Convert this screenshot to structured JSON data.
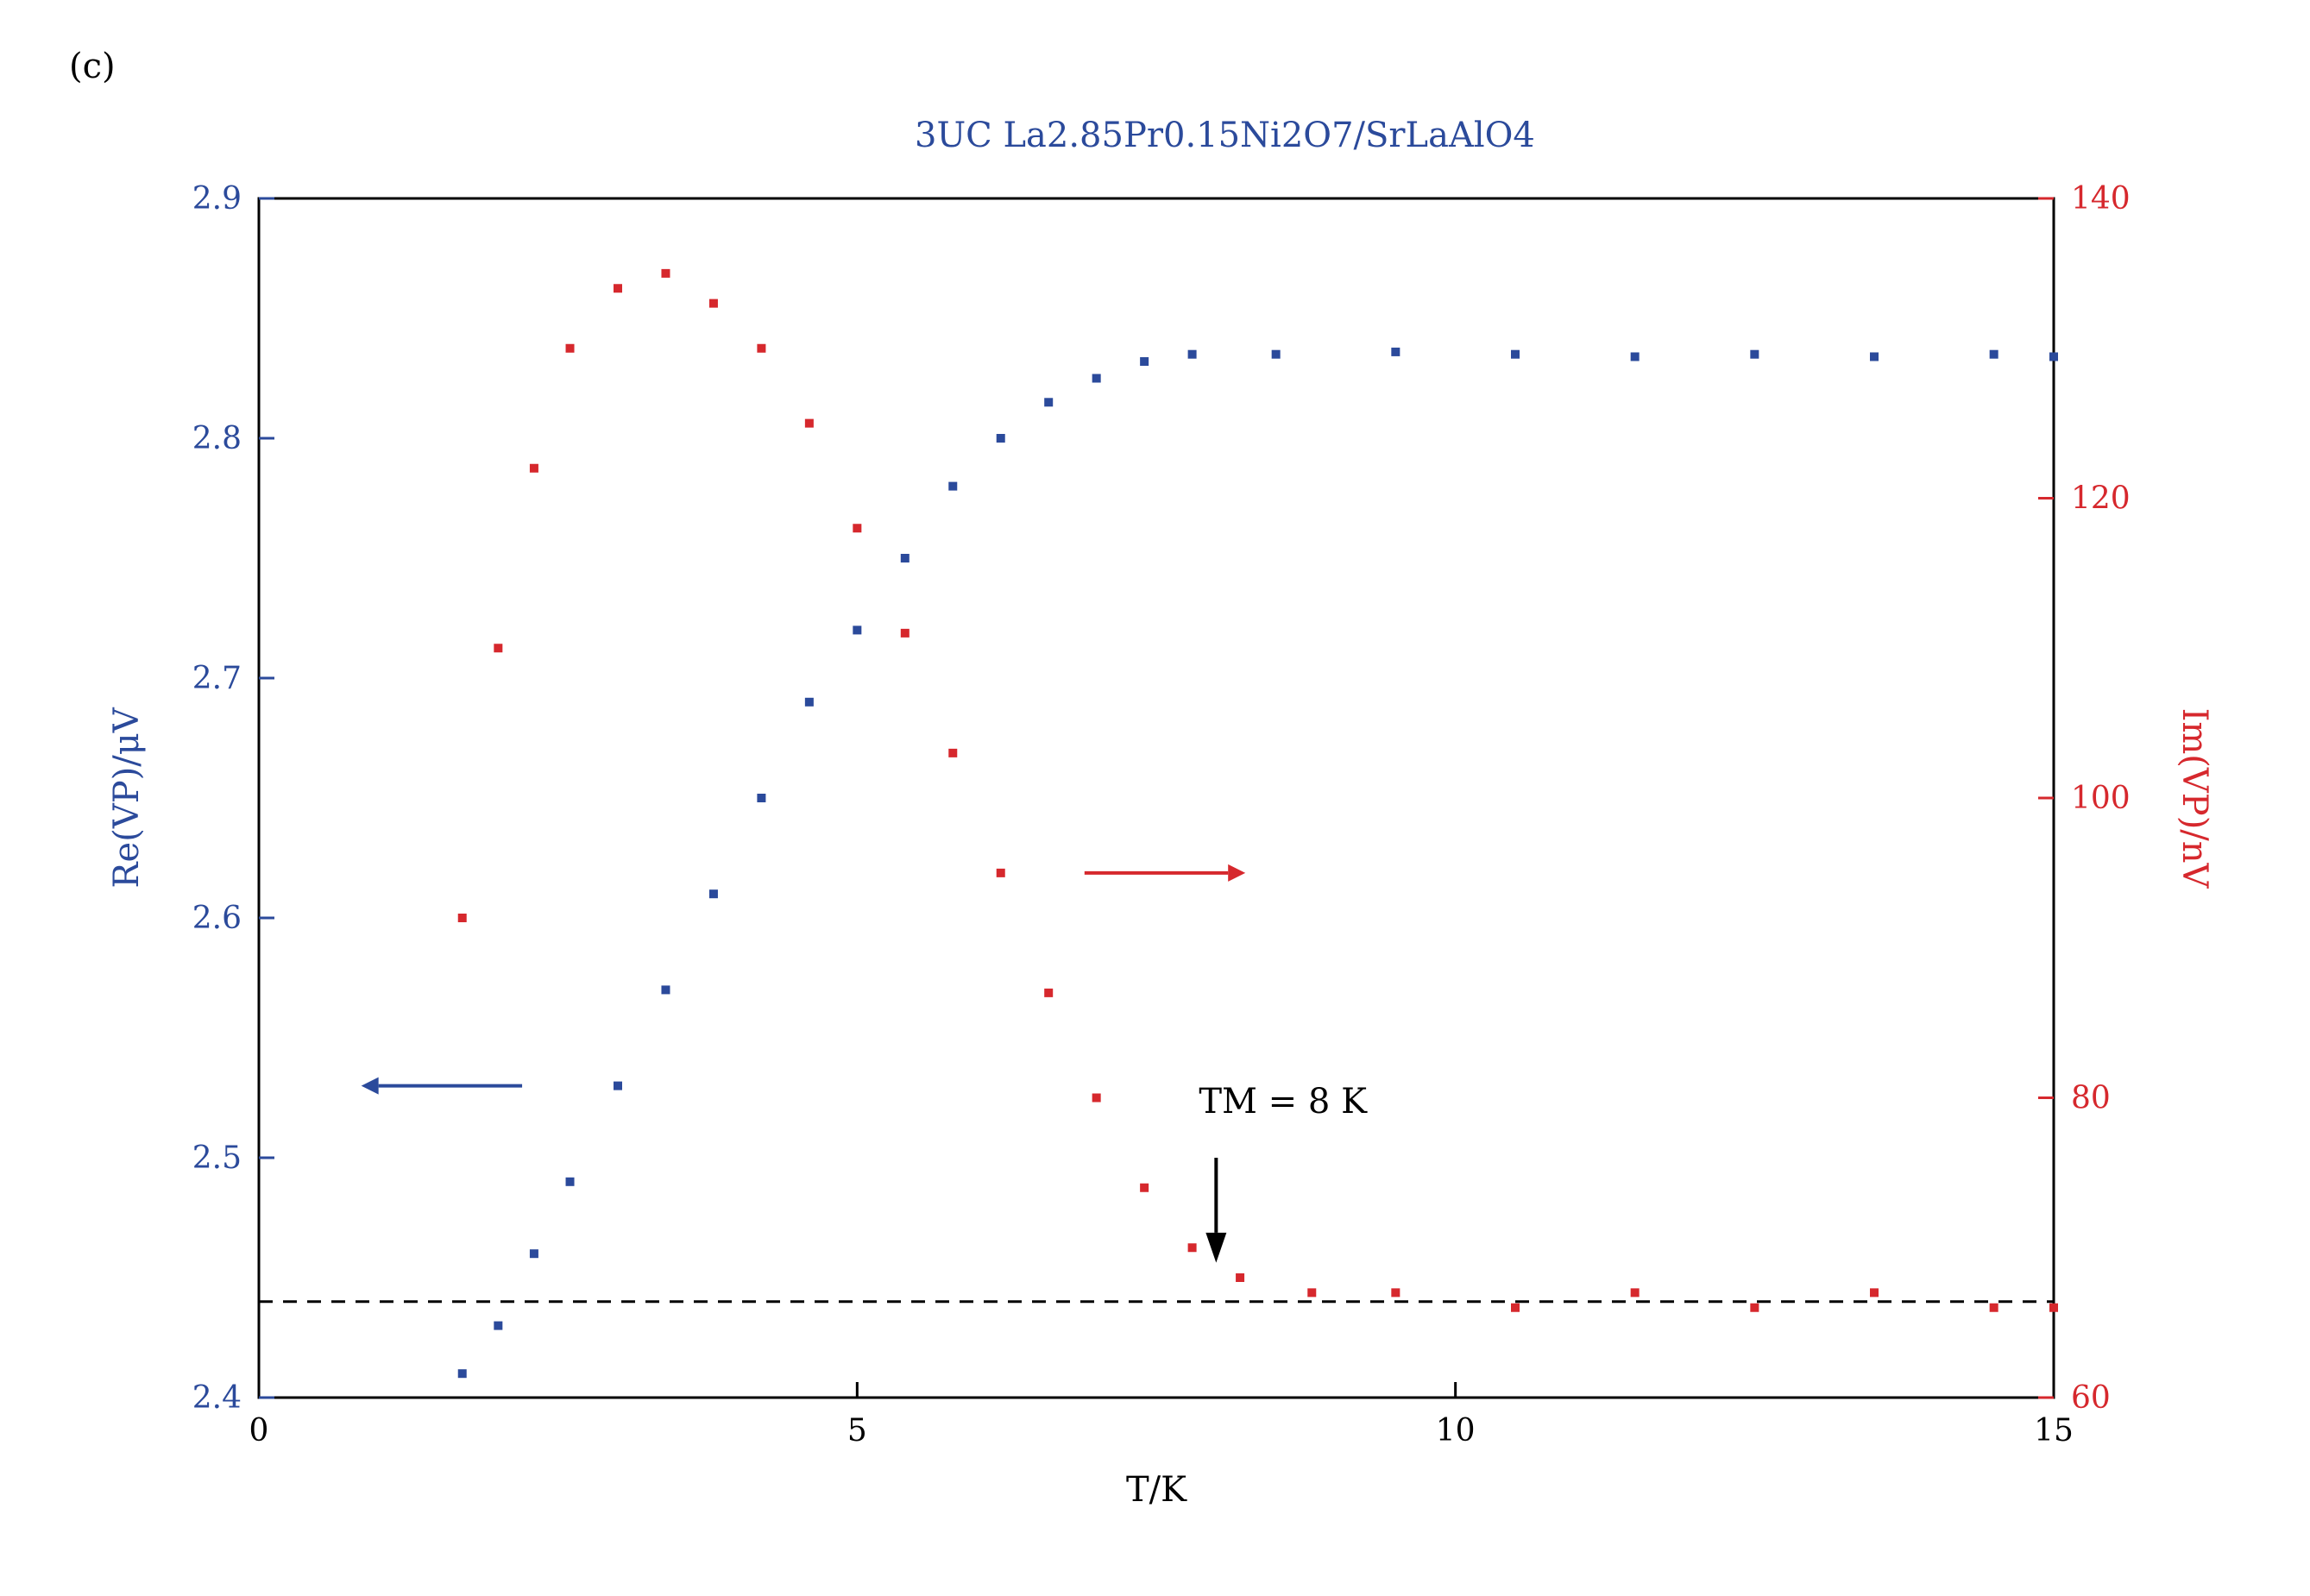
{
  "panel_label": "(c)",
  "chart_data": {
    "type": "scatter",
    "title": "3UC La2.85Pr0.15Ni2O7/SrLaAlO4",
    "xlabel": "T/K",
    "ylabel_left": "Re(VP)/μV",
    "ylabel_right": "Im(VP)/nV",
    "xlim": [
      0,
      15
    ],
    "ylim_left": [
      2.4,
      2.9
    ],
    "ylim_right": [
      60,
      140
    ],
    "x_ticks": [
      "0",
      "5",
      "10",
      "15"
    ],
    "y_ticks_left": [
      "2.4",
      "2.5",
      "2.6",
      "2.7",
      "2.8",
      "2.9"
    ],
    "y_ticks_right": [
      "60",
      "80",
      "100",
      "120",
      "140"
    ],
    "grid": false,
    "series": [
      {
        "color": "#2b4a9b",
        "axis": "left",
        "x": [
          1.7,
          2.0,
          2.3,
          2.6,
          3.0,
          3.4,
          3.8,
          4.2,
          4.6,
          5.0,
          5.4,
          5.8,
          6.2,
          6.6,
          7.0,
          7.4,
          7.8,
          8.5,
          9.5,
          10.5,
          11.5,
          12.5,
          13.5,
          14.5,
          15.0
        ],
        "y": [
          2.41,
          2.43,
          2.46,
          2.49,
          2.53,
          2.57,
          2.61,
          2.65,
          2.69,
          2.72,
          2.75,
          2.78,
          2.8,
          2.815,
          2.825,
          2.832,
          2.835,
          2.835,
          2.836,
          2.835,
          2.834,
          2.835,
          2.834,
          2.835,
          2.834
        ]
      },
      {
        "color": "#d6282d",
        "axis": "right",
        "x": [
          1.7,
          2.0,
          2.3,
          2.6,
          3.0,
          3.4,
          3.8,
          4.2,
          4.6,
          5.0,
          5.4,
          5.8,
          6.2,
          6.6,
          7.0,
          7.4,
          7.8,
          8.2,
          8.8,
          9.5,
          10.5,
          11.5,
          12.5,
          13.5,
          14.5,
          15.0
        ],
        "y": [
          92,
          110,
          122,
          130,
          134,
          135,
          133,
          130,
          125,
          118,
          111,
          103,
          95,
          87,
          80,
          74,
          70,
          68,
          67,
          67,
          66,
          67,
          66,
          67,
          66,
          66
        ]
      }
    ],
    "annotations": [
      {
        "text": "TM = 8 K",
        "x": 8,
        "y": 68
      },
      {
        "text": "dashed reference line",
        "y": 2.44
      }
    ]
  }
}
